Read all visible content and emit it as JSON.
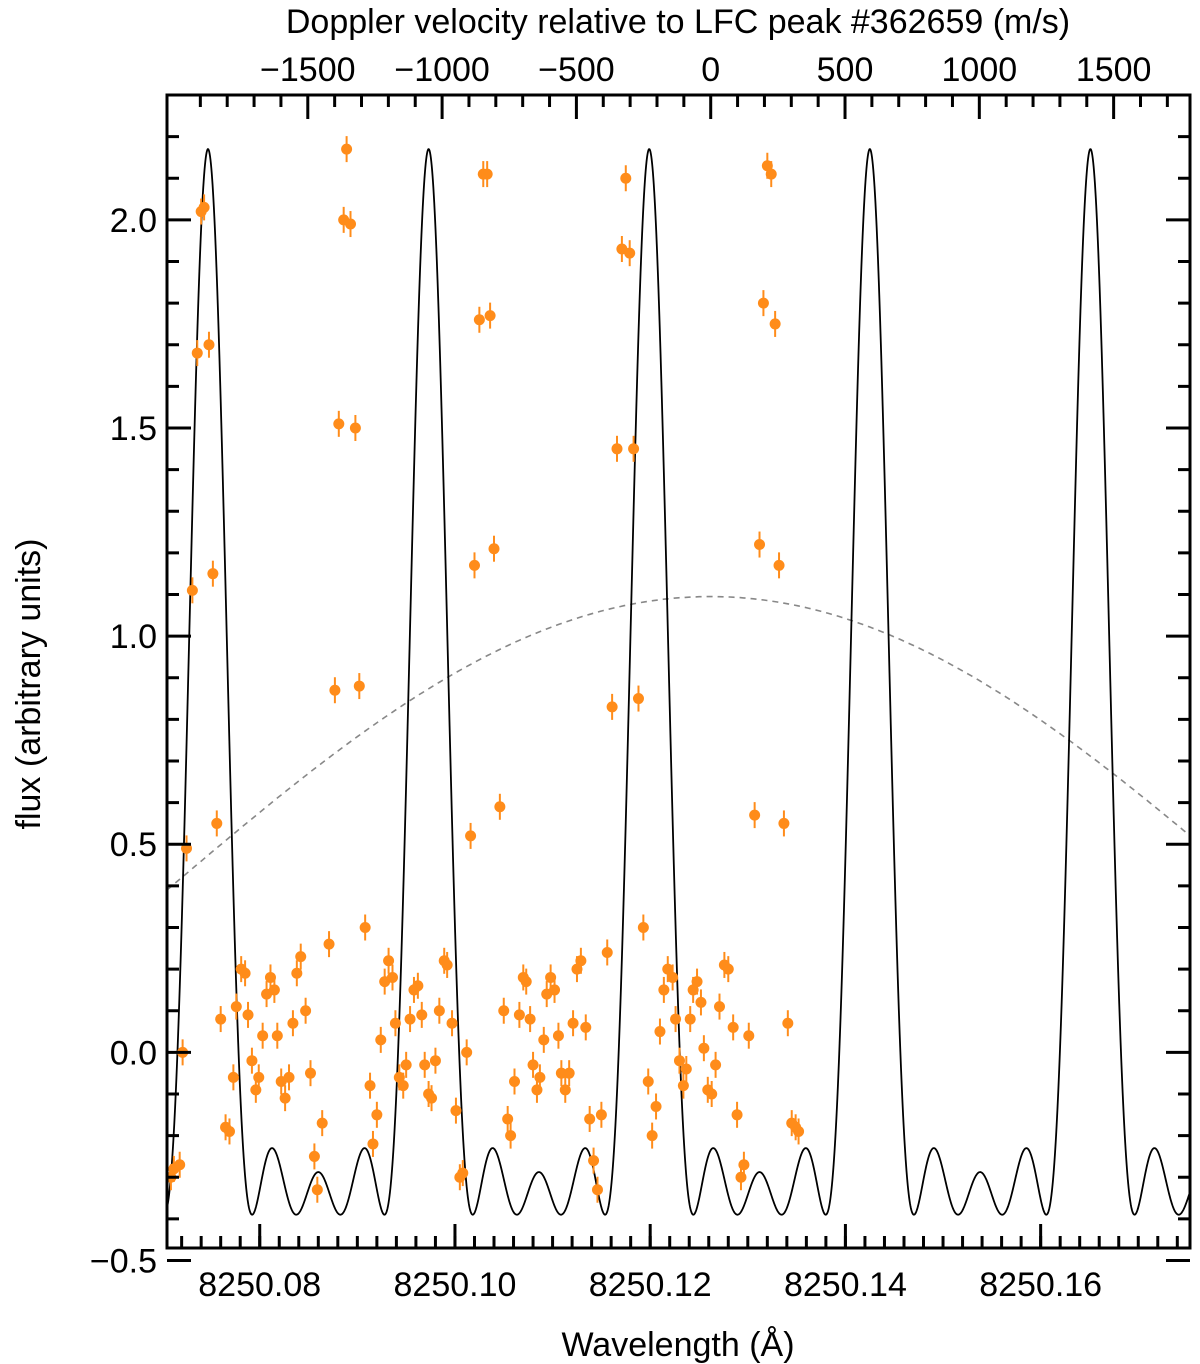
{
  "chart_data": {
    "type": "scatter",
    "title": "",
    "xlabel": "Wavelength (Å)",
    "ylabel": "flux (arbitrary units)",
    "top_axis_label": "Doppler velocity relative to LFC peak #362659 (m/s)",
    "xlim": [
      8250.0705,
      8250.1753
    ],
    "ylim": [
      -0.47,
      2.3
    ],
    "top_axis_center_wavelength": 8250.1262,
    "top_axis_ms_per_angstrom": 36340,
    "x_ticks": [
      "8250.08",
      "8250.10",
      "8250.12",
      "8250.14",
      "8250.16"
    ],
    "x_tick_values": [
      8250.08,
      8250.1,
      8250.12,
      8250.14,
      8250.16
    ],
    "y_ticks": [
      "−0.5",
      "0.0",
      "0.5",
      "1.0",
      "1.5",
      "2.0"
    ],
    "y_tick_values": [
      -0.5,
      0.0,
      0.5,
      1.0,
      1.5,
      2.0
    ],
    "top_ticks": [
      "−1500",
      "−1000",
      "−500",
      "0",
      "500",
      "1000",
      "1500"
    ],
    "top_tick_values": [
      -1500,
      -1000,
      -500,
      0,
      500,
      1000,
      1500
    ],
    "model": {
      "peak_wavelengths": [
        8250.0747,
        8250.0973,
        8250.12,
        8250.1426,
        8250.1652
      ],
      "peak_height": 2.17,
      "line_color": "#000000"
    },
    "envelope": {
      "center": 8250.1262,
      "peak": 1.095,
      "value_at_edges": 0.39,
      "style": "dashed",
      "color": "#888888"
    },
    "points_color": "#ff8c1a",
    "series": [
      {
        "points": [
          [
            8250.0709,
            -0.3
          ],
          [
            8250.0712,
            -0.28
          ],
          [
            8250.0718,
            -0.27
          ],
          [
            8250.0721,
            0.0
          ],
          [
            8250.0725,
            0.49
          ],
          [
            8250.0731,
            1.11
          ],
          [
            8250.0736,
            1.68
          ],
          [
            8250.074,
            2.02
          ],
          [
            8250.0743,
            2.03
          ],
          [
            8250.0748,
            1.7
          ],
          [
            8250.0752,
            1.15
          ],
          [
            8250.0756,
            0.55
          ],
          [
            8250.076,
            0.08
          ],
          [
            8250.0765,
            -0.18
          ],
          [
            8250.0769,
            -0.19
          ],
          [
            8250.0773,
            -0.06
          ],
          [
            8250.0776,
            0.11
          ],
          [
            8250.0781,
            0.2
          ],
          [
            8250.0785,
            0.19
          ],
          [
            8250.0788,
            0.09
          ],
          [
            8250.0792,
            -0.02
          ],
          [
            8250.0796,
            -0.09
          ],
          [
            8250.0799,
            -0.06
          ],
          [
            8250.0803,
            0.04
          ],
          [
            8250.0807,
            0.14
          ],
          [
            8250.0811,
            0.18
          ],
          [
            8250.0815,
            0.15
          ],
          [
            8250.0818,
            0.04
          ],
          [
            8250.0822,
            -0.07
          ],
          [
            8250.0826,
            -0.11
          ],
          [
            8250.083,
            -0.06
          ],
          [
            8250.0834,
            0.07
          ],
          [
            8250.0838,
            0.19
          ],
          [
            8250.0842,
            0.23
          ],
          [
            8250.0847,
            0.1
          ],
          [
            8250.0852,
            -0.05
          ],
          [
            8250.0856,
            -0.25
          ],
          [
            8250.0859,
            -0.33
          ],
          [
            8250.0864,
            -0.17
          ],
          [
            8250.0871,
            0.26
          ],
          [
            8250.0877,
            0.87
          ],
          [
            8250.0881,
            1.51
          ],
          [
            8250.0886,
            2.0
          ],
          [
            8250.0889,
            2.17
          ],
          [
            8250.0893,
            1.99
          ],
          [
            8250.0898,
            1.5
          ],
          [
            8250.0902,
            0.88
          ],
          [
            8250.0908,
            0.3
          ],
          [
            8250.0913,
            -0.08
          ],
          [
            8250.0916,
            -0.22
          ],
          [
            8250.092,
            -0.15
          ],
          [
            8250.0924,
            0.03
          ],
          [
            8250.0928,
            0.17
          ],
          [
            8250.0932,
            0.22
          ],
          [
            8250.0936,
            0.18
          ],
          [
            8250.0939,
            0.07
          ],
          [
            8250.0943,
            -0.06
          ],
          [
            8250.0947,
            -0.08
          ],
          [
            8250.095,
            -0.03
          ],
          [
            8250.0954,
            0.08
          ],
          [
            8250.0958,
            0.15
          ],
          [
            8250.0962,
            0.16
          ],
          [
            8250.0966,
            0.09
          ],
          [
            8250.0969,
            -0.03
          ],
          [
            8250.0973,
            -0.1
          ],
          [
            8250.0976,
            -0.11
          ],
          [
            8250.098,
            -0.02
          ],
          [
            8250.0984,
            0.1
          ],
          [
            8250.0989,
            0.22
          ],
          [
            8250.0992,
            0.21
          ],
          [
            8250.0997,
            0.07
          ],
          [
            8250.1001,
            -0.14
          ],
          [
            8250.1005,
            -0.3
          ],
          [
            8250.1008,
            -0.29
          ],
          [
            8250.1012,
            0.0
          ],
          [
            8250.1016,
            0.52
          ],
          [
            8250.102,
            1.17
          ],
          [
            8250.1025,
            1.76
          ],
          [
            8250.1029,
            2.11
          ],
          [
            8250.1033,
            2.11
          ],
          [
            8250.1036,
            1.77
          ],
          [
            8250.104,
            1.21
          ],
          [
            8250.1046,
            0.59
          ],
          [
            8250.105,
            0.1
          ],
          [
            8250.1054,
            -0.16
          ],
          [
            8250.1057,
            -0.2
          ],
          [
            8250.1061,
            -0.07
          ],
          [
            8250.1066,
            0.09
          ],
          [
            8250.107,
            0.18
          ],
          [
            8250.1073,
            0.17
          ],
          [
            8250.1077,
            0.08
          ],
          [
            8250.108,
            -0.03
          ],
          [
            8250.1084,
            -0.09
          ],
          [
            8250.1087,
            -0.06
          ],
          [
            8250.1091,
            0.03
          ],
          [
            8250.1094,
            0.14
          ],
          [
            8250.1098,
            0.18
          ],
          [
            8250.1102,
            0.15
          ],
          [
            8250.1106,
            0.04
          ],
          [
            8250.1109,
            -0.05
          ],
          [
            8250.1113,
            -0.09
          ],
          [
            8250.1117,
            -0.05
          ],
          [
            8250.1121,
            0.07
          ],
          [
            8250.1125,
            0.2
          ],
          [
            8250.1129,
            0.22
          ],
          [
            8250.1134,
            0.06
          ],
          [
            8250.1138,
            -0.16
          ],
          [
            8250.1142,
            -0.26
          ],
          [
            8250.1146,
            -0.33
          ],
          [
            8250.115,
            -0.15
          ],
          [
            8250.1156,
            0.24
          ],
          [
            8250.1161,
            0.83
          ],
          [
            8250.1166,
            1.45
          ],
          [
            8250.1171,
            1.93
          ],
          [
            8250.1175,
            2.1
          ],
          [
            8250.1179,
            1.92
          ],
          [
            8250.1183,
            1.45
          ],
          [
            8250.1188,
            0.85
          ],
          [
            8250.1193,
            0.3
          ],
          [
            8250.1198,
            -0.07
          ],
          [
            8250.1202,
            -0.2
          ],
          [
            8250.1206,
            -0.13
          ],
          [
            8250.121,
            0.05
          ],
          [
            8250.1214,
            0.15
          ],
          [
            8250.1218,
            0.2
          ],
          [
            8250.1223,
            0.18
          ],
          [
            8250.1226,
            0.08
          ],
          [
            8250.123,
            -0.02
          ],
          [
            8250.1234,
            -0.08
          ],
          [
            8250.1237,
            -0.04
          ],
          [
            8250.1241,
            0.08
          ],
          [
            8250.1244,
            0.15
          ],
          [
            8250.1248,
            0.17
          ],
          [
            8250.1252,
            0.12
          ],
          [
            8250.1255,
            0.01
          ],
          [
            8250.1259,
            -0.09
          ],
          [
            8250.1263,
            -0.1
          ],
          [
            8250.1267,
            -0.03
          ],
          [
            8250.1271,
            0.11
          ],
          [
            8250.1276,
            0.21
          ],
          [
            8250.128,
            0.2
          ],
          [
            8250.1285,
            0.06
          ],
          [
            8250.1289,
            -0.15
          ],
          [
            8250.1293,
            -0.3
          ],
          [
            8250.1296,
            -0.27
          ],
          [
            8250.1301,
            0.04
          ],
          [
            8250.1307,
            0.57
          ],
          [
            8250.1312,
            1.22
          ],
          [
            8250.1316,
            1.8
          ],
          [
            8250.132,
            2.13
          ],
          [
            8250.1324,
            2.11
          ],
          [
            8250.1328,
            1.75
          ],
          [
            8250.1332,
            1.17
          ],
          [
            8250.1337,
            0.55
          ],
          [
            8250.1341,
            0.07
          ],
          [
            8250.1345,
            -0.17
          ],
          [
            8250.1349,
            -0.18
          ],
          [
            8250.1352,
            -0.19
          ]
        ]
      }
    ]
  }
}
